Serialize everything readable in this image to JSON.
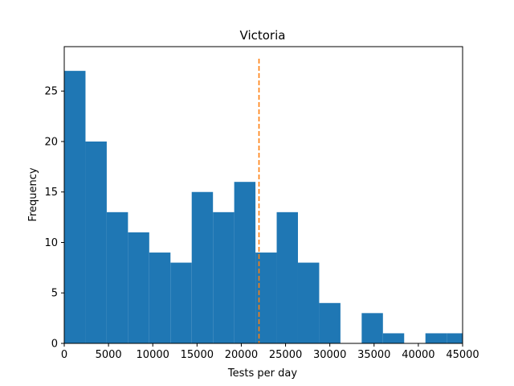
{
  "chart_data": {
    "type": "bar",
    "title": "Victoria",
    "xlabel": "Tests per day",
    "ylabel": "Frequency",
    "xlim": [
      0,
      45000
    ],
    "ylim": [
      0,
      29.4
    ],
    "bin_width": 2400,
    "bins": [
      {
        "start": 0,
        "end": 2400,
        "count": 27
      },
      {
        "start": 2400,
        "end": 4800,
        "count": 20
      },
      {
        "start": 4800,
        "end": 7200,
        "count": 13
      },
      {
        "start": 7200,
        "end": 9600,
        "count": 11
      },
      {
        "start": 9600,
        "end": 12000,
        "count": 9
      },
      {
        "start": 12000,
        "end": 14400,
        "count": 8
      },
      {
        "start": 14400,
        "end": 16800,
        "count": 15
      },
      {
        "start": 16800,
        "end": 19200,
        "count": 13
      },
      {
        "start": 19200,
        "end": 21600,
        "count": 16
      },
      {
        "start": 21600,
        "end": 24000,
        "count": 9
      },
      {
        "start": 24000,
        "end": 26400,
        "count": 13
      },
      {
        "start": 26400,
        "end": 28800,
        "count": 8
      },
      {
        "start": 28800,
        "end": 31200,
        "count": 4
      },
      {
        "start": 31200,
        "end": 33600,
        "count": 0
      },
      {
        "start": 33600,
        "end": 36000,
        "count": 3
      },
      {
        "start": 36000,
        "end": 38400,
        "count": 1
      },
      {
        "start": 38400,
        "end": 40800,
        "count": 0
      },
      {
        "start": 40800,
        "end": 43200,
        "count": 1
      },
      {
        "start": 43200,
        "end": 45600,
        "count": 1
      }
    ],
    "vertical_line": {
      "x": 22000,
      "style": "dashed",
      "color": "#ff7f0e"
    },
    "bar_color": "#1f77b4",
    "x_ticks": [
      {
        "value": 0,
        "label": "0"
      },
      {
        "value": 5000,
        "label": "5000"
      },
      {
        "value": 10000,
        "label": "10000"
      },
      {
        "value": 15000,
        "label": "15000"
      },
      {
        "value": 20000,
        "label": "20000"
      },
      {
        "value": 25000,
        "label": "25000"
      },
      {
        "value": 30000,
        "label": "30000"
      },
      {
        "value": 35000,
        "label": "35000"
      },
      {
        "value": 40000,
        "label": "40000"
      },
      {
        "value": 45000,
        "label": "45000"
      }
    ],
    "y_ticks": [
      {
        "value": 0,
        "label": "0"
      },
      {
        "value": 5,
        "label": "5"
      },
      {
        "value": 10,
        "label": "10"
      },
      {
        "value": 15,
        "label": "15"
      },
      {
        "value": 20,
        "label": "20"
      },
      {
        "value": 25,
        "label": "25"
      }
    ],
    "grid": false,
    "legend": "none"
  }
}
